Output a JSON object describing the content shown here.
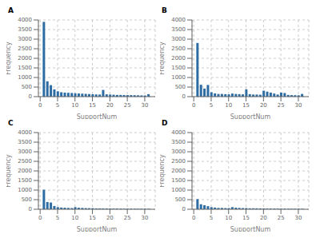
{
  "chart_data": [
    {
      "type": "bar",
      "title": "A",
      "xlabel": "SupportNum",
      "ylabel": "Frequency",
      "color": "#2e6da4",
      "grid": true,
      "x": [
        1,
        2,
        3,
        4,
        5,
        6,
        7,
        8,
        9,
        10,
        11,
        12,
        13,
        14,
        15,
        16,
        17,
        18,
        19,
        20,
        21,
        22,
        23,
        24,
        25,
        26,
        27,
        28,
        29,
        30,
        31
      ],
      "values": [
        3900,
        800,
        600,
        380,
        280,
        230,
        210,
        200,
        190,
        175,
        165,
        155,
        145,
        135,
        125,
        115,
        110,
        350,
        120,
        110,
        100,
        90,
        90,
        85,
        80,
        80,
        75,
        70,
        65,
        60,
        130
      ],
      "xlim": [
        -0.5,
        33
      ],
      "xticks": [
        0,
        5,
        10,
        15,
        20,
        25,
        30
      ],
      "ylim": [
        0,
        4000
      ],
      "yticks": [
        0,
        500,
        1000,
        1500,
        2000,
        2500,
        3000,
        3500,
        4000
      ]
    },
    {
      "type": "bar",
      "title": "B",
      "xlabel": "SupportNum",
      "ylabel": "Frequency",
      "color": "#2e6da4",
      "grid": true,
      "x": [
        1,
        2,
        3,
        4,
        5,
        6,
        7,
        8,
        9,
        10,
        11,
        12,
        13,
        14,
        15,
        16,
        17,
        18,
        19,
        20,
        21,
        22,
        23,
        24,
        25,
        26,
        27,
        28,
        29,
        30,
        31
      ],
      "values": [
        2800,
        620,
        420,
        610,
        230,
        170,
        140,
        140,
        130,
        120,
        160,
        140,
        130,
        120,
        380,
        130,
        110,
        110,
        100,
        310,
        260,
        210,
        160,
        110,
        210,
        190,
        90,
        80,
        75,
        70,
        140
      ],
      "xlim": [
        -0.5,
        33
      ],
      "xticks": [
        0,
        5,
        10,
        15,
        20,
        25,
        30
      ],
      "ylim": [
        0,
        4000
      ],
      "yticks": [
        0,
        500,
        1000,
        1500,
        2000,
        2500,
        3000,
        3500,
        4000
      ]
    },
    {
      "type": "bar",
      "title": "C",
      "xlabel": "SupportNum",
      "ylabel": "Frequency",
      "color": "#2e6da4",
      "grid": true,
      "x": [
        1,
        2,
        3,
        4,
        5,
        6,
        7,
        8,
        9,
        10,
        11,
        12,
        13,
        14,
        15,
        16,
        17,
        18,
        19,
        20,
        21,
        22,
        23,
        24,
        25,
        26,
        27,
        28,
        29,
        30,
        31
      ],
      "values": [
        1020,
        380,
        350,
        170,
        110,
        90,
        80,
        70,
        60,
        110,
        80,
        70,
        60,
        55,
        55,
        45,
        45,
        45,
        40,
        35,
        35,
        35,
        30,
        30,
        30,
        30,
        25,
        25,
        25,
        25,
        25
      ],
      "xlim": [
        -0.5,
        33
      ],
      "xticks": [
        0,
        5,
        10,
        15,
        20,
        25,
        30
      ],
      "ylim": [
        0,
        4000
      ],
      "yticks": [
        0,
        500,
        1000,
        1500,
        2000,
        2500,
        3000,
        3500,
        4000
      ]
    },
    {
      "type": "bar",
      "title": "D",
      "xlabel": "SupportNum",
      "ylabel": "Frequency",
      "color": "#2e6da4",
      "grid": true,
      "x": [
        1,
        2,
        3,
        4,
        5,
        6,
        7,
        8,
        9,
        10,
        11,
        12,
        13,
        14,
        15,
        16,
        17,
        18,
        19,
        20,
        21,
        22,
        23,
        24,
        25,
        26,
        27,
        28,
        29,
        30,
        31
      ],
      "values": [
        530,
        260,
        210,
        160,
        110,
        90,
        70,
        70,
        60,
        60,
        110,
        80,
        70,
        60,
        60,
        50,
        50,
        50,
        45,
        40,
        40,
        35,
        35,
        35,
        30,
        30,
        25,
        25,
        25,
        25,
        25
      ],
      "xlim": [
        -0.5,
        33
      ],
      "xticks": [
        0,
        5,
        10,
        15,
        20,
        25,
        30
      ],
      "ylim": [
        0,
        4000
      ],
      "yticks": [
        0,
        500,
        1000,
        1500,
        2000,
        2500,
        3000,
        3500,
        4000
      ]
    }
  ]
}
